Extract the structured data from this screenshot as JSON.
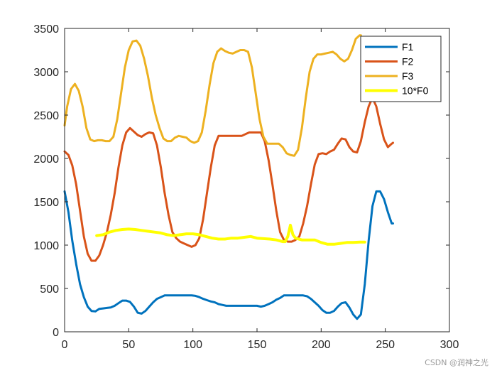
{
  "chart_data": {
    "type": "line",
    "xlim": [
      0,
      300
    ],
    "ylim": [
      0,
      3500
    ],
    "x_ticks": [
      0,
      50,
      100,
      150,
      200,
      250,
      300
    ],
    "y_ticks": [
      0,
      500,
      1000,
      1500,
      2000,
      2500,
      3000,
      3500
    ],
    "grid": false,
    "legend_position": "top-right",
    "series": [
      {
        "name": "F1",
        "color": "#0072BD",
        "points": [
          [
            0,
            1620
          ],
          [
            3,
            1380
          ],
          [
            6,
            1050
          ],
          [
            9,
            780
          ],
          [
            12,
            550
          ],
          [
            15,
            400
          ],
          [
            18,
            290
          ],
          [
            21,
            240
          ],
          [
            24,
            235
          ],
          [
            27,
            265
          ],
          [
            30,
            270
          ],
          [
            33,
            275
          ],
          [
            36,
            280
          ],
          [
            39,
            300
          ],
          [
            42,
            330
          ],
          [
            45,
            360
          ],
          [
            48,
            360
          ],
          [
            51,
            345
          ],
          [
            54,
            290
          ],
          [
            57,
            220
          ],
          [
            60,
            210
          ],
          [
            63,
            240
          ],
          [
            66,
            290
          ],
          [
            69,
            340
          ],
          [
            72,
            380
          ],
          [
            75,
            400
          ],
          [
            78,
            420
          ],
          [
            81,
            420
          ],
          [
            84,
            420
          ],
          [
            87,
            420
          ],
          [
            90,
            420
          ],
          [
            93,
            420
          ],
          [
            96,
            420
          ],
          [
            99,
            420
          ],
          [
            102,
            415
          ],
          [
            105,
            400
          ],
          [
            108,
            380
          ],
          [
            111,
            365
          ],
          [
            114,
            350
          ],
          [
            117,
            340
          ],
          [
            120,
            320
          ],
          [
            123,
            310
          ],
          [
            126,
            300
          ],
          [
            129,
            300
          ],
          [
            132,
            300
          ],
          [
            135,
            300
          ],
          [
            138,
            300
          ],
          [
            141,
            300
          ],
          [
            144,
            300
          ],
          [
            147,
            300
          ],
          [
            150,
            300
          ],
          [
            153,
            290
          ],
          [
            156,
            300
          ],
          [
            159,
            320
          ],
          [
            162,
            340
          ],
          [
            165,
            370
          ],
          [
            168,
            390
          ],
          [
            171,
            420
          ],
          [
            174,
            420
          ],
          [
            177,
            420
          ],
          [
            180,
            420
          ],
          [
            183,
            420
          ],
          [
            186,
            420
          ],
          [
            189,
            410
          ],
          [
            192,
            380
          ],
          [
            195,
            340
          ],
          [
            198,
            300
          ],
          [
            201,
            250
          ],
          [
            204,
            220
          ],
          [
            207,
            220
          ],
          [
            210,
            240
          ],
          [
            213,
            290
          ],
          [
            216,
            330
          ],
          [
            219,
            340
          ],
          [
            222,
            280
          ],
          [
            225,
            200
          ],
          [
            228,
            150
          ],
          [
            231,
            200
          ],
          [
            234,
            550
          ],
          [
            237,
            1050
          ],
          [
            240,
            1450
          ],
          [
            243,
            1620
          ],
          [
            246,
            1620
          ],
          [
            249,
            1530
          ],
          [
            252,
            1380
          ],
          [
            255,
            1250
          ],
          [
            256,
            1250
          ]
        ]
      },
      {
        "name": "F2",
        "color": "#D95319",
        "points": [
          [
            0,
            2080
          ],
          [
            3,
            2040
          ],
          [
            6,
            1920
          ],
          [
            9,
            1700
          ],
          [
            12,
            1400
          ],
          [
            15,
            1100
          ],
          [
            18,
            900
          ],
          [
            21,
            820
          ],
          [
            24,
            820
          ],
          [
            27,
            880
          ],
          [
            30,
            1000
          ],
          [
            33,
            1150
          ],
          [
            36,
            1350
          ],
          [
            39,
            1600
          ],
          [
            42,
            1900
          ],
          [
            45,
            2150
          ],
          [
            48,
            2300
          ],
          [
            51,
            2350
          ],
          [
            54,
            2310
          ],
          [
            57,
            2270
          ],
          [
            60,
            2250
          ],
          [
            63,
            2280
          ],
          [
            66,
            2300
          ],
          [
            69,
            2290
          ],
          [
            72,
            2150
          ],
          [
            75,
            1900
          ],
          [
            78,
            1600
          ],
          [
            81,
            1350
          ],
          [
            84,
            1150
          ],
          [
            87,
            1080
          ],
          [
            90,
            1040
          ],
          [
            93,
            1020
          ],
          [
            96,
            1000
          ],
          [
            99,
            980
          ],
          [
            102,
            1000
          ],
          [
            105,
            1080
          ],
          [
            108,
            1300
          ],
          [
            111,
            1600
          ],
          [
            114,
            1900
          ],
          [
            117,
            2150
          ],
          [
            120,
            2260
          ],
          [
            123,
            2260
          ],
          [
            126,
            2260
          ],
          [
            129,
            2260
          ],
          [
            132,
            2260
          ],
          [
            135,
            2260
          ],
          [
            138,
            2260
          ],
          [
            141,
            2280
          ],
          [
            144,
            2300
          ],
          [
            147,
            2300
          ],
          [
            150,
            2300
          ],
          [
            153,
            2300
          ],
          [
            156,
            2200
          ],
          [
            159,
            1980
          ],
          [
            162,
            1700
          ],
          [
            165,
            1400
          ],
          [
            168,
            1150
          ],
          [
            171,
            1060
          ],
          [
            174,
            1040
          ],
          [
            177,
            1040
          ],
          [
            180,
            1060
          ],
          [
            183,
            1100
          ],
          [
            186,
            1250
          ],
          [
            189,
            1450
          ],
          [
            192,
            1700
          ],
          [
            195,
            1930
          ],
          [
            198,
            2050
          ],
          [
            201,
            2060
          ],
          [
            204,
            2050
          ],
          [
            207,
            2080
          ],
          [
            210,
            2100
          ],
          [
            213,
            2170
          ],
          [
            216,
            2230
          ],
          [
            219,
            2220
          ],
          [
            222,
            2130
          ],
          [
            225,
            2080
          ],
          [
            228,
            2070
          ],
          [
            231,
            2200
          ],
          [
            234,
            2420
          ],
          [
            237,
            2600
          ],
          [
            240,
            2700
          ],
          [
            243,
            2600
          ],
          [
            246,
            2400
          ],
          [
            249,
            2220
          ],
          [
            252,
            2130
          ],
          [
            255,
            2170
          ],
          [
            256,
            2180
          ]
        ]
      },
      {
        "name": "F3",
        "color": "#EDB120",
        "points": [
          [
            0,
            2380
          ],
          [
            2,
            2600
          ],
          [
            5,
            2800
          ],
          [
            8,
            2860
          ],
          [
            11,
            2780
          ],
          [
            14,
            2600
          ],
          [
            17,
            2350
          ],
          [
            20,
            2220
          ],
          [
            23,
            2200
          ],
          [
            26,
            2210
          ],
          [
            29,
            2210
          ],
          [
            32,
            2200
          ],
          [
            35,
            2200
          ],
          [
            38,
            2250
          ],
          [
            41,
            2450
          ],
          [
            44,
            2750
          ],
          [
            47,
            3050
          ],
          [
            50,
            3250
          ],
          [
            53,
            3350
          ],
          [
            56,
            3360
          ],
          [
            59,
            3300
          ],
          [
            62,
            3150
          ],
          [
            65,
            2950
          ],
          [
            68,
            2700
          ],
          [
            71,
            2500
          ],
          [
            74,
            2350
          ],
          [
            77,
            2230
          ],
          [
            80,
            2200
          ],
          [
            83,
            2200
          ],
          [
            86,
            2240
          ],
          [
            89,
            2260
          ],
          [
            92,
            2250
          ],
          [
            95,
            2240
          ],
          [
            98,
            2200
          ],
          [
            101,
            2180
          ],
          [
            104,
            2200
          ],
          [
            107,
            2300
          ],
          [
            110,
            2550
          ],
          [
            113,
            2850
          ],
          [
            116,
            3100
          ],
          [
            119,
            3230
          ],
          [
            122,
            3270
          ],
          [
            125,
            3240
          ],
          [
            128,
            3220
          ],
          [
            131,
            3210
          ],
          [
            134,
            3230
          ],
          [
            137,
            3250
          ],
          [
            140,
            3250
          ],
          [
            143,
            3230
          ],
          [
            146,
            3050
          ],
          [
            149,
            2750
          ],
          [
            152,
            2450
          ],
          [
            155,
            2250
          ],
          [
            158,
            2170
          ],
          [
            161,
            2170
          ],
          [
            164,
            2170
          ],
          [
            167,
            2170
          ],
          [
            170,
            2130
          ],
          [
            173,
            2060
          ],
          [
            176,
            2040
          ],
          [
            179,
            2030
          ],
          [
            182,
            2100
          ],
          [
            185,
            2350
          ],
          [
            188,
            2700
          ],
          [
            191,
            3000
          ],
          [
            194,
            3150
          ],
          [
            197,
            3200
          ],
          [
            200,
            3200
          ],
          [
            203,
            3210
          ],
          [
            206,
            3220
          ],
          [
            209,
            3230
          ],
          [
            212,
            3200
          ],
          [
            215,
            3150
          ],
          [
            218,
            3120
          ],
          [
            221,
            3150
          ],
          [
            224,
            3250
          ],
          [
            227,
            3380
          ],
          [
            230,
            3420
          ],
          [
            231,
            3420
          ]
        ]
      },
      {
        "name": "10*F0",
        "color": "#FFFF00",
        "points": [
          [
            25,
            1110
          ],
          [
            30,
            1120
          ],
          [
            35,
            1150
          ],
          [
            40,
            1170
          ],
          [
            45,
            1180
          ],
          [
            50,
            1185
          ],
          [
            55,
            1180
          ],
          [
            60,
            1170
          ],
          [
            65,
            1160
          ],
          [
            70,
            1150
          ],
          [
            75,
            1140
          ],
          [
            80,
            1120
          ],
          [
            85,
            1110
          ],
          [
            90,
            1120
          ],
          [
            95,
            1130
          ],
          [
            100,
            1130
          ],
          [
            105,
            1120
          ],
          [
            110,
            1100
          ],
          [
            115,
            1080
          ],
          [
            120,
            1070
          ],
          [
            125,
            1070
          ],
          [
            130,
            1080
          ],
          [
            135,
            1080
          ],
          [
            140,
            1090
          ],
          [
            145,
            1100
          ],
          [
            150,
            1080
          ],
          [
            155,
            1075
          ],
          [
            160,
            1070
          ],
          [
            165,
            1060
          ],
          [
            170,
            1040
          ],
          [
            172,
            1040
          ],
          [
            174,
            1100
          ],
          [
            176,
            1230
          ],
          [
            178,
            1120
          ],
          [
            180,
            1080
          ],
          [
            185,
            1060
          ],
          [
            190,
            1060
          ],
          [
            195,
            1060
          ],
          [
            200,
            1030
          ],
          [
            205,
            1010
          ],
          [
            210,
            1010
          ],
          [
            215,
            1020
          ],
          [
            220,
            1030
          ],
          [
            225,
            1030
          ],
          [
            230,
            1035
          ],
          [
            234,
            1035
          ]
        ]
      }
    ]
  },
  "watermark": "CSDN @润神之光"
}
